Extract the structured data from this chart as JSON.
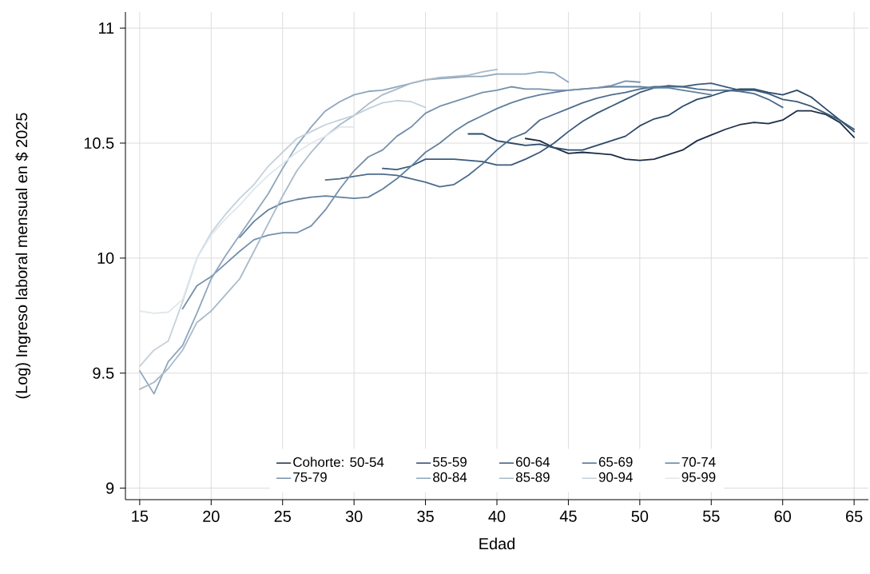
{
  "chart_data": {
    "type": "line",
    "xlabel": "Edad",
    "ylabel": "(Log) Ingreso laboral mensual en $ 2025",
    "xlim": [
      14,
      66
    ],
    "xticks": [
      15,
      20,
      25,
      30,
      35,
      40,
      45,
      50,
      55,
      60,
      65
    ],
    "ylim": [
      8.95,
      11.07
    ],
    "yticks": [
      9,
      9.5,
      10,
      10.5,
      11
    ],
    "grid": true,
    "legend": "bottom",
    "series": [
      {
        "name": "Cohorte: 50-54",
        "color": "#1b2d45",
        "x": [
          42,
          43,
          44,
          45,
          46,
          47,
          48,
          49,
          50,
          51,
          52,
          53,
          54,
          55,
          56,
          57,
          58,
          59,
          60,
          61,
          62,
          63,
          64,
          65
        ],
        "values": [
          10.52,
          10.51,
          10.48,
          10.455,
          10.46,
          10.455,
          10.45,
          10.43,
          10.425,
          10.43,
          10.45,
          10.47,
          10.51,
          10.535,
          10.56,
          10.58,
          10.59,
          10.585,
          10.6,
          10.64,
          10.64,
          10.625,
          10.59,
          10.525
        ]
      },
      {
        "name": "55-59",
        "color": "#2c4a6a",
        "x": [
          38,
          39,
          40,
          41,
          42,
          43,
          44,
          45,
          46,
          47,
          48,
          49,
          50,
          51,
          52,
          53,
          54,
          55,
          56,
          57,
          58,
          59,
          60,
          61,
          62,
          63,
          64,
          65
        ],
        "values": [
          10.54,
          10.54,
          10.51,
          10.5,
          10.49,
          10.495,
          10.48,
          10.47,
          10.47,
          10.49,
          10.51,
          10.53,
          10.575,
          10.605,
          10.62,
          10.66,
          10.69,
          10.705,
          10.725,
          10.735,
          10.735,
          10.72,
          10.71,
          10.73,
          10.7,
          10.65,
          10.6,
          10.55
        ]
      },
      {
        "name": "60-64",
        "color": "#3a5a7c",
        "x": [
          32,
          33,
          34,
          35,
          36,
          37,
          38,
          39,
          40,
          41,
          42,
          43,
          44,
          45,
          46,
          47,
          48,
          49,
          50,
          51,
          52,
          53,
          54,
          55,
          56,
          57,
          58,
          59,
          60,
          61,
          62,
          63,
          64,
          65
        ],
        "values": [
          10.39,
          10.385,
          10.4,
          10.43,
          10.43,
          10.43,
          10.425,
          10.42,
          10.405,
          10.405,
          10.43,
          10.46,
          10.5,
          10.55,
          10.595,
          10.63,
          10.66,
          10.69,
          10.72,
          10.74,
          10.75,
          10.745,
          10.755,
          10.76,
          10.745,
          10.73,
          10.73,
          10.715,
          10.69,
          10.68,
          10.66,
          10.63,
          10.6,
          10.56
        ]
      },
      {
        "name": "65-69",
        "color": "#4d6c8c",
        "x": [
          28,
          29,
          30,
          31,
          32,
          33,
          34,
          35,
          36,
          37,
          38,
          39,
          40,
          41,
          42,
          43,
          44,
          45,
          46,
          47,
          48,
          49,
          50,
          51,
          52,
          53,
          54,
          55,
          56,
          57,
          58,
          59,
          60
        ],
        "values": [
          10.34,
          10.345,
          10.355,
          10.365,
          10.365,
          10.36,
          10.345,
          10.33,
          10.31,
          10.32,
          10.36,
          10.41,
          10.47,
          10.52,
          10.545,
          10.6,
          10.625,
          10.65,
          10.675,
          10.695,
          10.71,
          10.72,
          10.735,
          10.745,
          10.745,
          10.745,
          10.735,
          10.73,
          10.73,
          10.725,
          10.715,
          10.69,
          10.655
        ]
      },
      {
        "name": "70-74",
        "color": "#60809e",
        "x": [
          22,
          23,
          24,
          25,
          26,
          27,
          28,
          29,
          30,
          31,
          32,
          33,
          34,
          35,
          36,
          37,
          38,
          39,
          40,
          41,
          42,
          43,
          44,
          45,
          46,
          47,
          48,
          49,
          50,
          51,
          52,
          53,
          54,
          55
        ],
        "values": [
          10.09,
          10.16,
          10.21,
          10.24,
          10.255,
          10.265,
          10.27,
          10.265,
          10.26,
          10.265,
          10.3,
          10.345,
          10.4,
          10.46,
          10.5,
          10.55,
          10.59,
          10.62,
          10.65,
          10.675,
          10.695,
          10.71,
          10.72,
          10.73,
          10.735,
          10.74,
          10.745,
          10.745,
          10.745,
          10.74,
          10.74,
          10.73,
          10.72,
          10.71
        ]
      },
      {
        "name": "75-79",
        "color": "#7690ab",
        "x": [
          18,
          19,
          20,
          21,
          22,
          23,
          24,
          25,
          26,
          27,
          28,
          29,
          30,
          31,
          32,
          33,
          34,
          35,
          36,
          37,
          38,
          39,
          40,
          41,
          42,
          43,
          44,
          45,
          46,
          47,
          48,
          49,
          50
        ],
        "values": [
          9.78,
          9.88,
          9.92,
          9.975,
          10.03,
          10.08,
          10.1,
          10.11,
          10.11,
          10.14,
          10.21,
          10.3,
          10.38,
          10.44,
          10.47,
          10.53,
          10.57,
          10.63,
          10.66,
          10.68,
          10.7,
          10.72,
          10.73,
          10.745,
          10.735,
          10.735,
          10.73,
          10.73,
          10.735,
          10.74,
          10.75,
          10.77,
          10.765
        ]
      },
      {
        "name": "80-84",
        "color": "#8fa6bd",
        "x": [
          15,
          16,
          17,
          18,
          19,
          20,
          21,
          22,
          23,
          24,
          25,
          26,
          27,
          28,
          29,
          30,
          31,
          32,
          33,
          34,
          35,
          36,
          37,
          38,
          39,
          40,
          41,
          42,
          43,
          44,
          45
        ],
        "values": [
          9.51,
          9.41,
          9.55,
          9.62,
          9.76,
          9.91,
          10.01,
          10.1,
          10.19,
          10.28,
          10.39,
          10.49,
          10.57,
          10.64,
          10.68,
          10.71,
          10.725,
          10.73,
          10.745,
          10.76,
          10.775,
          10.78,
          10.785,
          10.79,
          10.79,
          10.8,
          10.8,
          10.8,
          10.81,
          10.805,
          10.765
        ]
      },
      {
        "name": "85-89",
        "color": "#a9bac9",
        "x": [
          15,
          16,
          17,
          18,
          19,
          20,
          21,
          22,
          23,
          24,
          25,
          26,
          27,
          28,
          29,
          30,
          31,
          32,
          33,
          34,
          35,
          36,
          37,
          38,
          39,
          40
        ],
        "values": [
          9.43,
          9.46,
          9.52,
          9.6,
          9.72,
          9.77,
          9.84,
          9.91,
          10.03,
          10.15,
          10.27,
          10.38,
          10.46,
          10.53,
          10.58,
          10.62,
          10.67,
          10.71,
          10.735,
          10.76,
          10.775,
          10.785,
          10.79,
          10.795,
          10.81,
          10.82
        ]
      },
      {
        "name": "90-94",
        "color": "#c4d0da",
        "x": [
          15,
          16,
          17,
          18,
          19,
          20,
          21,
          22,
          23,
          24,
          25,
          26,
          27,
          28,
          29,
          30,
          31,
          32,
          33,
          34,
          35
        ],
        "values": [
          9.53,
          9.6,
          9.64,
          9.81,
          10.0,
          10.11,
          10.19,
          10.26,
          10.32,
          10.4,
          10.46,
          10.52,
          10.55,
          10.58,
          10.6,
          10.62,
          10.65,
          10.675,
          10.685,
          10.68,
          10.655
        ]
      },
      {
        "name": "95-99",
        "color": "#e0e7ec",
        "x": [
          15,
          16,
          17,
          18,
          19,
          20,
          21,
          22,
          23,
          24,
          25,
          26,
          27,
          28,
          29,
          30
        ],
        "values": [
          9.77,
          9.76,
          9.765,
          9.82,
          10.0,
          10.1,
          10.17,
          10.23,
          10.3,
          10.36,
          10.41,
          10.46,
          10.5,
          10.53,
          10.57,
          10.57
        ]
      }
    ]
  }
}
